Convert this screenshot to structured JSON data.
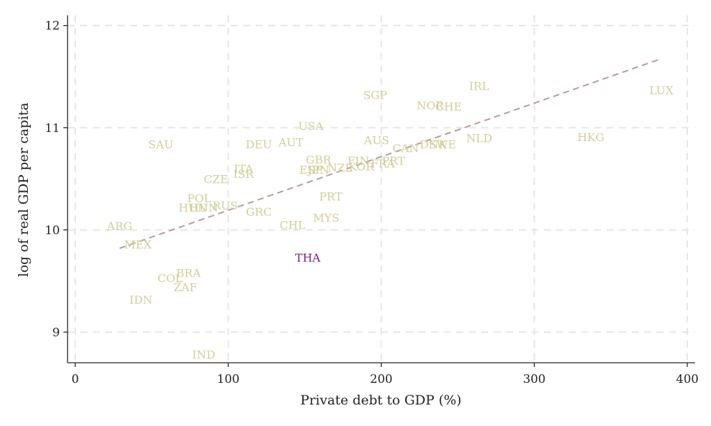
{
  "chart_data": {
    "type": "scatter",
    "xlabel": "Private debt to GDP (%)",
    "ylabel": "log of real GDP per capita",
    "xlim": [
      -5,
      405
    ],
    "ylim": [
      8.7,
      12.1
    ],
    "xticks": [
      0,
      100,
      200,
      300,
      400
    ],
    "yticks": [
      9,
      10,
      11,
      12
    ],
    "grid": true,
    "colors": {
      "points": "#d4cc9a",
      "highlight": "#7a1f7a",
      "fit": "#b89a96",
      "grid": "#e6e6e6",
      "axis": "#222222"
    },
    "fit_line": {
      "x": [
        29,
        382
      ],
      "y": [
        9.82,
        11.67
      ]
    },
    "points": [
      {
        "label": "LUX",
        "x": 383,
        "y": 11.37
      },
      {
        "label": "IRL",
        "x": 264,
        "y": 11.41
      },
      {
        "label": "SGP",
        "x": 196,
        "y": 11.32
      },
      {
        "label": "NOR",
        "x": 232,
        "y": 11.22
      },
      {
        "label": "CHE",
        "x": 244,
        "y": 11.21
      },
      {
        "label": "HKG",
        "x": 337,
        "y": 10.91
      },
      {
        "label": "NLD",
        "x": 264,
        "y": 10.9
      },
      {
        "label": "USA",
        "x": 154,
        "y": 11.02
      },
      {
        "label": "AUS",
        "x": 197,
        "y": 10.88
      },
      {
        "label": "AUT",
        "x": 141,
        "y": 10.86
      },
      {
        "label": "DEU",
        "x": 120,
        "y": 10.84
      },
      {
        "label": "SAU",
        "x": 56,
        "y": 10.84
      },
      {
        "label": "DNK",
        "x": 234,
        "y": 10.84
      },
      {
        "label": "SWE",
        "x": 240,
        "y": 10.84
      },
      {
        "label": "CAN",
        "x": 216,
        "y": 10.8
      },
      {
        "label": "GBR",
        "x": 159,
        "y": 10.69
      },
      {
        "label": "FIN",
        "x": 185,
        "y": 10.68
      },
      {
        "label": "PRT",
        "x": 208,
        "y": 10.68
      },
      {
        "label": "FRA",
        "x": 201,
        "y": 10.65
      },
      {
        "label": "KOR",
        "x": 187,
        "y": 10.62
      },
      {
        "label": "NZL",
        "x": 173,
        "y": 10.61
      },
      {
        "label": "ESP",
        "x": 154,
        "y": 10.59
      },
      {
        "label": "JPN",
        "x": 159,
        "y": 10.59
      },
      {
        "label": "ITA",
        "x": 110,
        "y": 10.6
      },
      {
        "label": "ISR",
        "x": 110,
        "y": 10.55
      },
      {
        "label": "CZE",
        "x": 92,
        "y": 10.5
      },
      {
        "label": "PRT",
        "x": 167,
        "y": 10.33
      },
      {
        "label": "POL",
        "x": 81,
        "y": 10.31
      },
      {
        "label": "HUN",
        "x": 84,
        "y": 10.22
      },
      {
        "label": "RUS",
        "x": 98,
        "y": 10.24
      },
      {
        "label": "HUN",
        "x": 77,
        "y": 10.22
      },
      {
        "label": "GRC",
        "x": 120,
        "y": 10.18
      },
      {
        "label": "MYS",
        "x": 164,
        "y": 10.12
      },
      {
        "label": "CHL",
        "x": 142,
        "y": 10.05
      },
      {
        "label": "ARG",
        "x": 29,
        "y": 10.04
      },
      {
        "label": "MEX",
        "x": 41,
        "y": 9.86
      },
      {
        "label": "THA",
        "x": 152,
        "y": 9.73,
        "highlight": true
      },
      {
        "label": "BRA",
        "x": 74,
        "y": 9.58
      },
      {
        "label": "COL",
        "x": 62,
        "y": 9.53
      },
      {
        "label": "ZAF",
        "x": 72,
        "y": 9.44
      },
      {
        "label": "IDN",
        "x": 43,
        "y": 9.32
      },
      {
        "label": "IND",
        "x": 84,
        "y": 8.78
      }
    ]
  }
}
